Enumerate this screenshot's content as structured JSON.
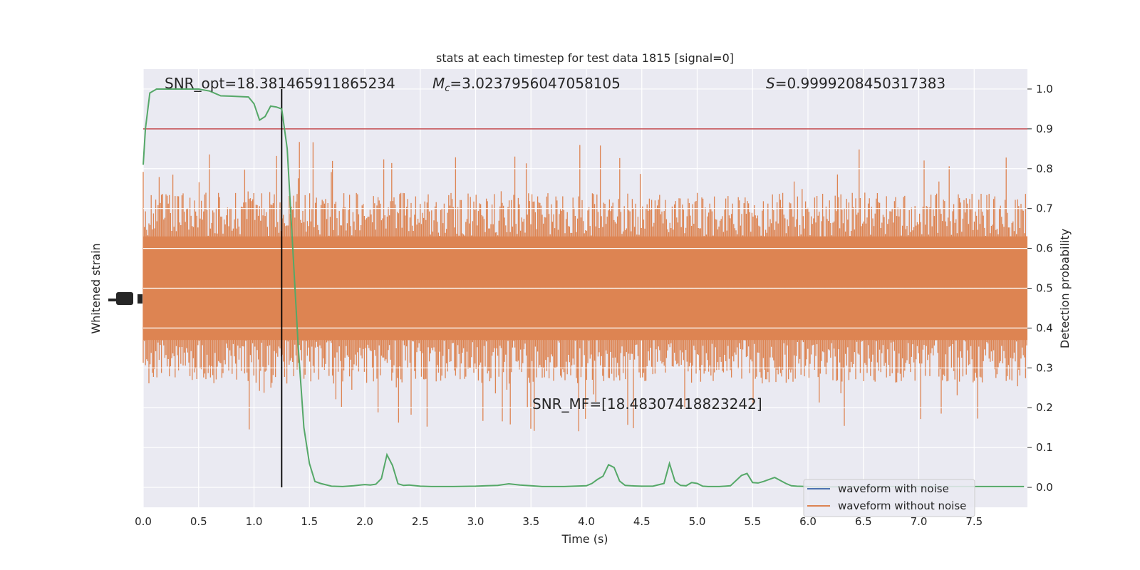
{
  "chart_data": {
    "type": "line",
    "title": "stats at each timestep for test data 1815 [signal=0]",
    "xlabel": "Time (s)",
    "ylabel_left": "Whitened strain",
    "ylabel_right": "Detection probability",
    "xlim": [
      0,
      8
    ],
    "ylim_right": [
      -0.05,
      1.05
    ],
    "x_ticks": [
      "0.0",
      "0.5",
      "1.0",
      "1.5",
      "2.0",
      "2.5",
      "3.0",
      "3.5",
      "4.0",
      "4.5",
      "5.0",
      "5.5",
      "6.0",
      "6.5",
      "7.0",
      "7.5"
    ],
    "y_right_ticks": [
      "0.0",
      "0.1",
      "0.2",
      "0.3",
      "0.4",
      "0.5",
      "0.6",
      "0.7",
      "0.8",
      "0.9",
      "1.0"
    ],
    "annotations": {
      "snr_opt": "SNR_opt=18.381465911865234",
      "mc_prefix": "M",
      "mc_sub": "c",
      "mc_value": "=3.0237956047058105",
      "s_prefix": "S",
      "s_value": "=0.9999208450317383",
      "snr_mf": "SNR_MF=[18.48307418823242]"
    },
    "threshold": 0.9,
    "merger_time": 1.25,
    "series": [
      {
        "name": "detection probability",
        "color": "#55a868",
        "x": [
          0.0,
          0.02,
          0.06,
          0.12,
          0.25,
          0.5,
          0.6,
          0.7,
          0.8,
          0.95,
          1.0,
          1.05,
          1.1,
          1.15,
          1.2,
          1.25,
          1.3,
          1.35,
          1.4,
          1.45,
          1.5,
          1.55,
          1.6,
          1.7,
          1.8,
          1.9,
          2.0,
          2.05,
          2.1,
          2.15,
          2.2,
          2.25,
          2.3,
          2.35,
          2.4,
          2.5,
          2.6,
          2.8,
          3.0,
          3.1,
          3.2,
          3.3,
          3.4,
          3.5,
          3.6,
          3.8,
          4.0,
          4.05,
          4.1,
          4.15,
          4.2,
          4.25,
          4.3,
          4.35,
          4.4,
          4.5,
          4.6,
          4.7,
          4.75,
          4.8,
          4.85,
          4.9,
          4.95,
          5.0,
          5.05,
          5.1,
          5.2,
          5.3,
          5.4,
          5.45,
          5.5,
          5.55,
          5.6,
          5.7,
          5.8,
          5.85,
          5.9,
          6.0,
          6.1,
          6.5,
          7.0,
          7.5,
          7.95
        ],
        "y": [
          0.81,
          0.9,
          0.99,
          1.0,
          1.0,
          1.0,
          0.995,
          0.983,
          0.982,
          0.98,
          0.963,
          0.922,
          0.931,
          0.957,
          0.955,
          0.95,
          0.85,
          0.6,
          0.35,
          0.15,
          0.06,
          0.015,
          0.01,
          0.003,
          0.002,
          0.004,
          0.007,
          0.006,
          0.008,
          0.022,
          0.082,
          0.055,
          0.009,
          0.005,
          0.006,
          0.003,
          0.002,
          0.002,
          0.003,
          0.004,
          0.005,
          0.009,
          0.006,
          0.004,
          0.002,
          0.002,
          0.004,
          0.01,
          0.02,
          0.028,
          0.057,
          0.05,
          0.016,
          0.005,
          0.004,
          0.003,
          0.003,
          0.01,
          0.06,
          0.015,
          0.005,
          0.004,
          0.012,
          0.01,
          0.003,
          0.002,
          0.002,
          0.004,
          0.03,
          0.035,
          0.012,
          0.011,
          0.015,
          0.025,
          0.01,
          0.004,
          0.003,
          0.002,
          0.001,
          0.002,
          0.002,
          0.002,
          0.002
        ]
      },
      {
        "name": "threshold",
        "color": "#c44e52",
        "y": 0.9
      }
    ],
    "legend": {
      "location": "lower-right",
      "items": [
        {
          "label": "waveform with noise",
          "color": "#4c72b0"
        },
        {
          "label": "waveform without noise",
          "color": "#dd8452"
        }
      ]
    },
    "strain": {
      "name": "whitened strain",
      "color": "#dd8452",
      "center_prob": 0.5,
      "dense_half_width": 0.13,
      "spike_reach": 0.24,
      "spike_max_reach": 0.37
    }
  }
}
